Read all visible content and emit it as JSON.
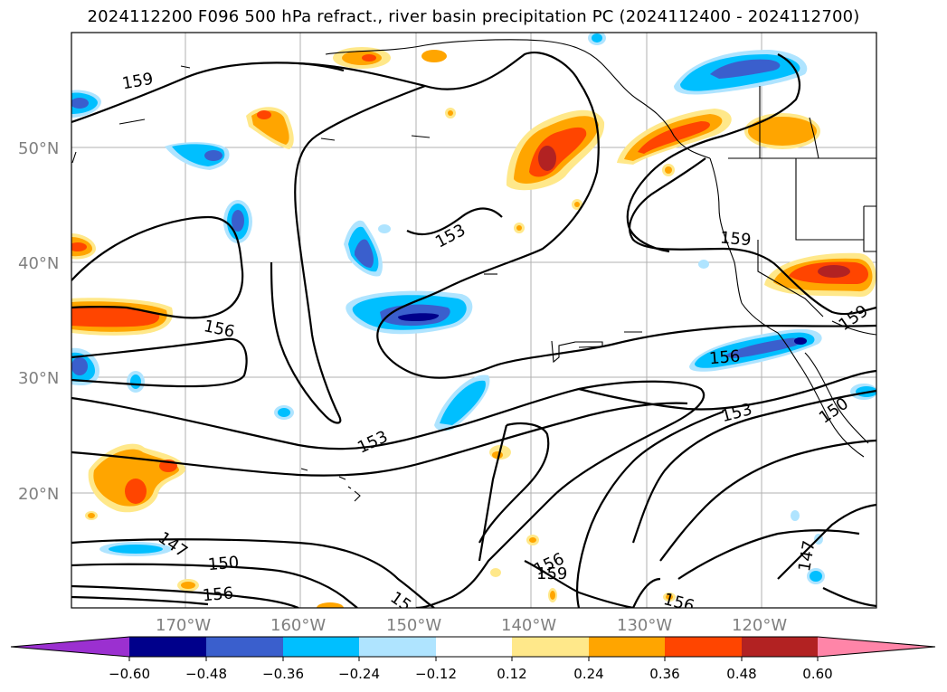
{
  "title": "2024112200 F096 500 hPa refract., river basin precipitation PC (2024112400 - 2024112700)",
  "map": {
    "lat_labels": [
      "50°N",
      "40°N",
      "30°N",
      "20°N"
    ],
    "lon_labels": [
      "170°W",
      "160°W",
      "150°W",
      "140°W",
      "130°W",
      "120°W"
    ],
    "contour_labels": [
      {
        "id": "c159a",
        "text": "159"
      },
      {
        "id": "c153a",
        "text": "153"
      },
      {
        "id": "c156a",
        "text": "156"
      },
      {
        "id": "c159b",
        "text": "159"
      },
      {
        "id": "c159c",
        "text": "159"
      },
      {
        "id": "c156b",
        "text": "156"
      },
      {
        "id": "c153b",
        "text": "153"
      },
      {
        "id": "c153c",
        "text": "153"
      },
      {
        "id": "c150a",
        "text": "150"
      },
      {
        "id": "c147a",
        "text": "147"
      },
      {
        "id": "c150b",
        "text": "150"
      },
      {
        "id": "c156c",
        "text": "156"
      },
      {
        "id": "c156d",
        "text": "156"
      },
      {
        "id": "c159d",
        "text": "159"
      },
      {
        "id": "c156e",
        "text": "156"
      },
      {
        "id": "c147b",
        "text": "147"
      },
      {
        "id": "c15x",
        "text": "15"
      }
    ],
    "colors": {
      "neg_extend": "#9b30d0",
      "c1": "#00008b",
      "c2": "#3a5fcd",
      "c3": "#00bfff",
      "c4": "#afe4ff",
      "c5": "#ffffff",
      "c6": "#ffe88a",
      "c7": "#ffa500",
      "c8": "#ff4500",
      "c9": "#b22222",
      "pos_extend": "#ff85a8"
    }
  },
  "colorbar": {
    "ticks": [
      "−0.60",
      "−0.48",
      "−0.36",
      "−0.24",
      "−0.12",
      "0.12",
      "0.24",
      "0.36",
      "0.48",
      "0.60"
    ]
  }
}
